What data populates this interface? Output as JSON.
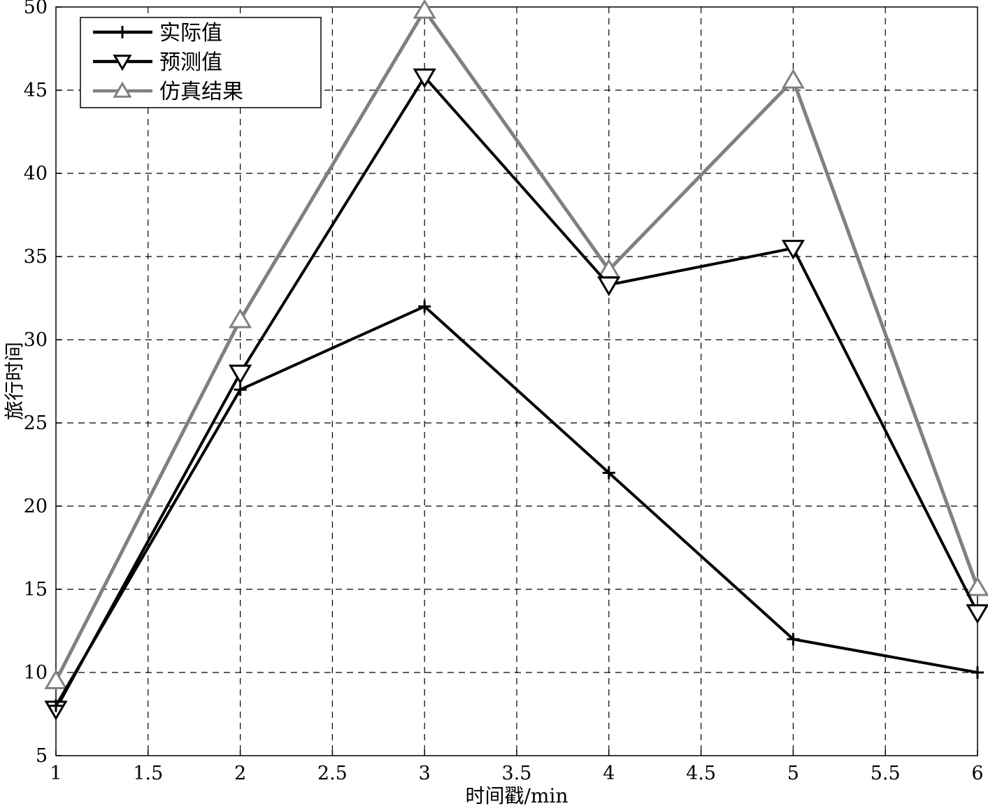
{
  "chart_data": {
    "type": "line",
    "xlabel": "时间戳/min",
    "ylabel": "旅行时间",
    "xlim": [
      1,
      6
    ],
    "ylim": [
      5,
      50
    ],
    "xticks": [
      "1",
      "1.5",
      "2",
      "2.5",
      "3",
      "3.5",
      "4",
      "4.5",
      "5",
      "5.5",
      "6"
    ],
    "yticks": [
      "5",
      "10",
      "15",
      "20",
      "25",
      "30",
      "35",
      "40",
      "45",
      "50"
    ],
    "grid": true,
    "legend_position": "top-left",
    "x": [
      1,
      2,
      3,
      4,
      5,
      6
    ],
    "series": [
      {
        "name": "实际值",
        "marker": "plus",
        "color": "#000000",
        "values": [
          8,
          27,
          32,
          22,
          12,
          10
        ]
      },
      {
        "name": "预测值",
        "marker": "triangle-down",
        "color": "#000000",
        "values": [
          7.8,
          28,
          45.8,
          33.3,
          35.5,
          13.6
        ]
      },
      {
        "name": "仿真结果",
        "marker": "triangle-up",
        "color": "#808080",
        "values": [
          9.5,
          31.2,
          49.8,
          34.2,
          45.6,
          15.1
        ]
      }
    ]
  }
}
